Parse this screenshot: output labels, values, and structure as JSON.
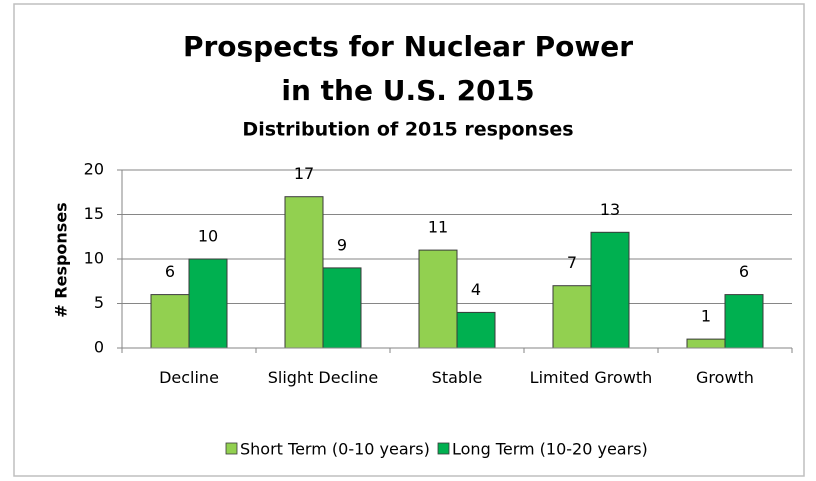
{
  "chart_data": {
    "type": "bar",
    "title": [
      "Prospects for Nuclear Power",
      "in the U.S. 2015"
    ],
    "subtitle": "Distribution of 2015 responses",
    "y_label": "# Responses",
    "categories": [
      "Decline",
      "Slight Decline",
      "Stable",
      "Limited Growth",
      "Growth"
    ],
    "series": [
      {
        "name": "Short Term (0-10 years)",
        "color": "#92d050",
        "values": [
          6,
          17,
          11,
          7,
          1
        ]
      },
      {
        "name": "Long Term (10-20 years)",
        "color": "#00b050",
        "values": [
          10,
          9,
          4,
          13,
          6
        ]
      }
    ],
    "ylim": [
      0,
      20
    ],
    "yticks": [
      0,
      5,
      10,
      15,
      20
    ],
    "grid": true,
    "legend": "bottom"
  }
}
